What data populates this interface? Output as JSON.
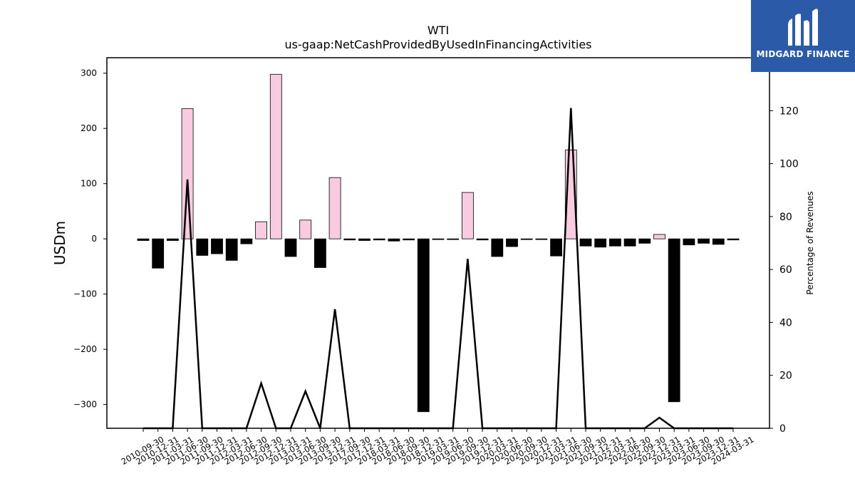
{
  "brand": {
    "name": "MIDGARD FINANCE",
    "logo_icon": "midgard-logo-icon",
    "color": "#2b5aa8"
  },
  "chart_data": {
    "type": "bar",
    "title": "WTI",
    "subtitle": "us-gaap:NetCashProvidedByUsedInFinancingActivities",
    "ylabel": "USDm",
    "y2label": "Percentage of Revenues",
    "ylim": [
      -343,
      328
    ],
    "y2lim": [
      0,
      140
    ],
    "yticks": [
      -300,
      -200,
      -100,
      0,
      100,
      200,
      300
    ],
    "yticklabels": [
      "−300",
      "−200",
      "−100",
      "0",
      "100",
      "200",
      "300"
    ],
    "y2ticks": [
      0,
      20,
      40,
      60,
      80,
      100,
      120
    ],
    "grid": false,
    "categories": [
      "2010-09-30",
      "2010-12-31",
      "2011-03-31",
      "2011-06-30",
      "2011-09-30",
      "2011-12-31",
      "2012-03-31",
      "2012-06-30",
      "2012-09-30",
      "2012-12-31",
      "2013-03-31",
      "2013-06-30",
      "2013-09-30",
      "2013-12-31",
      "2017-09-30",
      "2017-12-31",
      "2018-03-31",
      "2018-06-30",
      "2018-09-30",
      "2018-12-31",
      "2019-03-31",
      "2019-06-30",
      "2019-09-30",
      "2019-12-31",
      "2020-03-31",
      "2020-06-30",
      "2020-09-30",
      "2020-12-31",
      "2021-03-31",
      "2021-06-30",
      "2021-09-30",
      "2021-12-31",
      "2022-03-31",
      "2022-06-30",
      "2022-09-30",
      "2022-12-31",
      "2023-03-31",
      "2023-06-30",
      "2023-09-30",
      "2023-12-31",
      "2024-03-31"
    ],
    "series": [
      {
        "type": "bar",
        "values": [
          -3,
          -53,
          -3,
          236,
          -30,
          -27,
          -39,
          -9,
          31,
          298,
          -32,
          34,
          -52,
          111,
          -2,
          -3,
          -2,
          -4,
          -2,
          -313,
          -1,
          -1,
          84,
          -2,
          -32,
          -14,
          -1,
          -1,
          -31,
          161,
          -13,
          -15,
          -13,
          -13,
          -8,
          8,
          -295,
          -11,
          -8,
          -10,
          -2
        ],
        "colors": {
          "positive": "#f9cbe1",
          "negative": "#000000",
          "edge": "#000000"
        }
      },
      {
        "type": "line",
        "axis": "right",
        "values": [
          0,
          0,
          0,
          94,
          0,
          0,
          0,
          0,
          17,
          0,
          0,
          14,
          0,
          45,
          0,
          0,
          0,
          0,
          0,
          0,
          0,
          0,
          64,
          0,
          0,
          0,
          0,
          0,
          0,
          121,
          0,
          0,
          0,
          0,
          0,
          4,
          0,
          0,
          0,
          0,
          0
        ],
        "color": "#000000"
      }
    ]
  }
}
